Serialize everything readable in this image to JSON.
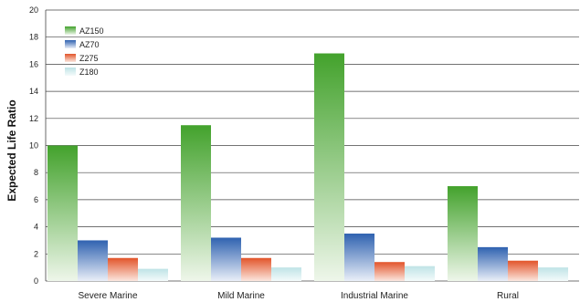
{
  "chart_data": {
    "type": "bar",
    "title": "",
    "xlabel": "",
    "ylabel": "Expected Life Ratio",
    "ylim": [
      0,
      20
    ],
    "yticks": [
      0,
      2,
      4,
      6,
      8,
      10,
      12,
      14,
      16,
      18,
      20
    ],
    "grid": true,
    "legend_position": "top-left",
    "categories": [
      "Severe Marine",
      "Mild Marine",
      "Industrial Marine",
      "Rural"
    ],
    "series": [
      {
        "name": "AZ150",
        "values": [
          10.0,
          11.5,
          16.8,
          7.0
        ],
        "color_top": "#43a22c",
        "color_bottom": "#eef6ea"
      },
      {
        "name": "AZ70",
        "values": [
          3.0,
          3.2,
          3.5,
          2.5
        ],
        "color_top": "#2f62b0",
        "color_bottom": "#eaeff8"
      },
      {
        "name": "Z275",
        "values": [
          1.7,
          1.7,
          1.4,
          1.5
        ],
        "color_top": "#e2542a",
        "color_bottom": "#fbe7df"
      },
      {
        "name": "Z180",
        "values": [
          0.9,
          1.0,
          1.1,
          1.0
        ],
        "color_top": "#bfe3e6",
        "color_bottom": "#f4fbfb"
      }
    ]
  }
}
